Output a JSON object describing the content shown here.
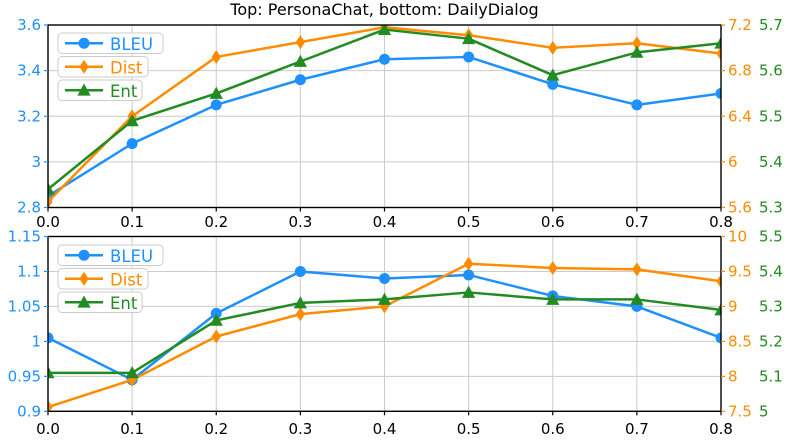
{
  "figure": {
    "title": "Top: PersonaChat, bottom: DailyDialog",
    "colors": {
      "bleu": "#1E90FF",
      "dist": "#FF8C00",
      "ent": "#228B22",
      "grid": "#cccccc",
      "axis": "#000000",
      "legend_edge": "#cccccc"
    }
  },
  "chart_data": [
    {
      "type": "line",
      "name": "PersonaChat",
      "x": [
        0.0,
        0.1,
        0.2,
        0.3,
        0.4,
        0.5,
        0.6,
        0.7,
        0.8
      ],
      "x_ticks": [
        {
          "v": 0.0,
          "label": "0.0"
        },
        {
          "v": 0.1,
          "label": "0.1"
        },
        {
          "v": 0.2,
          "label": "0.2"
        },
        {
          "v": 0.3,
          "label": "0.3"
        },
        {
          "v": 0.4,
          "label": "0.4"
        },
        {
          "v": 0.5,
          "label": "0.5"
        },
        {
          "v": 0.6,
          "label": "0.6"
        },
        {
          "v": 0.7,
          "label": "0.7"
        },
        {
          "v": 0.8,
          "label": "0.8"
        }
      ],
      "left_axis": {
        "min": 2.8,
        "max": 3.6,
        "color": "#1E90FF",
        "ticks": [
          {
            "v": 2.8,
            "label": "2.8"
          },
          {
            "v": 3.0,
            "label": "3"
          },
          {
            "v": 3.2,
            "label": "3.2"
          },
          {
            "v": 3.4,
            "label": "3.4"
          },
          {
            "v": 3.6,
            "label": "3.6"
          }
        ]
      },
      "right_axis_orange": {
        "min": 5.6,
        "max": 7.2,
        "color": "#FF8C00",
        "ticks": [
          {
            "v": 5.6,
            "label": "5.6"
          },
          {
            "v": 6.0,
            "label": "6"
          },
          {
            "v": 6.4,
            "label": "6.4"
          },
          {
            "v": 6.8,
            "label": "6.8"
          },
          {
            "v": 7.2,
            "label": "7.2"
          }
        ]
      },
      "right_axis_green": {
        "min": 5.3,
        "max": 5.7,
        "color": "#228B22",
        "ticks": [
          {
            "v": 5.3,
            "label": "5.3"
          },
          {
            "v": 5.4,
            "label": "5.4"
          },
          {
            "v": 5.5,
            "label": "5.5"
          },
          {
            "v": 5.6,
            "label": "5.6"
          },
          {
            "v": 5.7,
            "label": "5.7"
          }
        ]
      },
      "series": [
        {
          "name": "BLEU",
          "axis": "left",
          "marker": "circle",
          "color": "#1E90FF",
          "values": [
            2.85,
            3.08,
            3.25,
            3.36,
            3.45,
            3.46,
            3.34,
            3.25,
            3.3
          ]
        },
        {
          "name": "Dist",
          "axis": "orange",
          "marker": "diamond",
          "color": "#FF8C00",
          "values": [
            5.65,
            6.4,
            6.92,
            7.05,
            7.18,
            7.11,
            7.0,
            7.04,
            6.95
          ]
        },
        {
          "name": "Ent",
          "axis": "green",
          "marker": "triangle",
          "color": "#228B22",
          "values": [
            5.34,
            5.49,
            5.55,
            5.62,
            5.69,
            5.67,
            5.59,
            5.64,
            5.66
          ]
        }
      ],
      "legend": {
        "position": "upper-left",
        "labels": [
          "BLEU",
          "Dist",
          "Ent"
        ]
      }
    },
    {
      "type": "line",
      "name": "DailyDialog",
      "x": [
        0.0,
        0.1,
        0.2,
        0.3,
        0.4,
        0.5,
        0.6,
        0.7,
        0.8
      ],
      "x_ticks": [
        {
          "v": 0.0,
          "label": "0.0"
        },
        {
          "v": 0.1,
          "label": "0.1"
        },
        {
          "v": 0.2,
          "label": "0.2"
        },
        {
          "v": 0.3,
          "label": "0.3"
        },
        {
          "v": 0.4,
          "label": "0.4"
        },
        {
          "v": 0.5,
          "label": "0.5"
        },
        {
          "v": 0.6,
          "label": "0.6"
        },
        {
          "v": 0.7,
          "label": "0.7"
        },
        {
          "v": 0.8,
          "label": "0.8"
        }
      ],
      "left_axis": {
        "min": 0.9,
        "max": 1.15,
        "color": "#1E90FF",
        "ticks": [
          {
            "v": 0.9,
            "label": "0.9"
          },
          {
            "v": 0.95,
            "label": "0.95"
          },
          {
            "v": 1.0,
            "label": "1"
          },
          {
            "v": 1.05,
            "label": "1.05"
          },
          {
            "v": 1.1,
            "label": "1.1"
          },
          {
            "v": 1.15,
            "label": "1.15"
          }
        ]
      },
      "right_axis_orange": {
        "min": 7.5,
        "max": 10,
        "color": "#FF8C00",
        "ticks": [
          {
            "v": 7.5,
            "label": "7.5"
          },
          {
            "v": 8,
            "label": "8"
          },
          {
            "v": 8.5,
            "label": "8.5"
          },
          {
            "v": 9,
            "label": "9"
          },
          {
            "v": 9.5,
            "label": "9.5"
          },
          {
            "v": 10,
            "label": "10"
          }
        ]
      },
      "right_axis_green": {
        "min": 5.0,
        "max": 5.5,
        "color": "#228B22",
        "ticks": [
          {
            "v": 5.0,
            "label": "5"
          },
          {
            "v": 5.1,
            "label": "5.1"
          },
          {
            "v": 5.2,
            "label": "5.2"
          },
          {
            "v": 5.3,
            "label": "5.3"
          },
          {
            "v": 5.4,
            "label": "5.4"
          },
          {
            "v": 5.5,
            "label": "5.5"
          }
        ]
      },
      "series": [
        {
          "name": "BLEU",
          "axis": "left",
          "marker": "circle",
          "color": "#1E90FF",
          "values": [
            1.005,
            0.945,
            1.04,
            1.1,
            1.09,
            1.095,
            1.065,
            1.05,
            1.005
          ]
        },
        {
          "name": "Dist",
          "axis": "orange",
          "marker": "diamond",
          "color": "#FF8C00",
          "values": [
            7.56,
            7.95,
            8.57,
            8.89,
            9.0,
            9.61,
            9.55,
            9.53,
            9.36
          ]
        },
        {
          "name": "Ent",
          "axis": "green",
          "marker": "triangle",
          "color": "#228B22",
          "values": [
            5.11,
            5.11,
            5.26,
            5.31,
            5.32,
            5.34,
            5.32,
            5.32,
            5.29
          ]
        }
      ],
      "legend": {
        "position": "upper-left",
        "labels": [
          "BLEU",
          "Dist",
          "Ent"
        ]
      }
    }
  ]
}
